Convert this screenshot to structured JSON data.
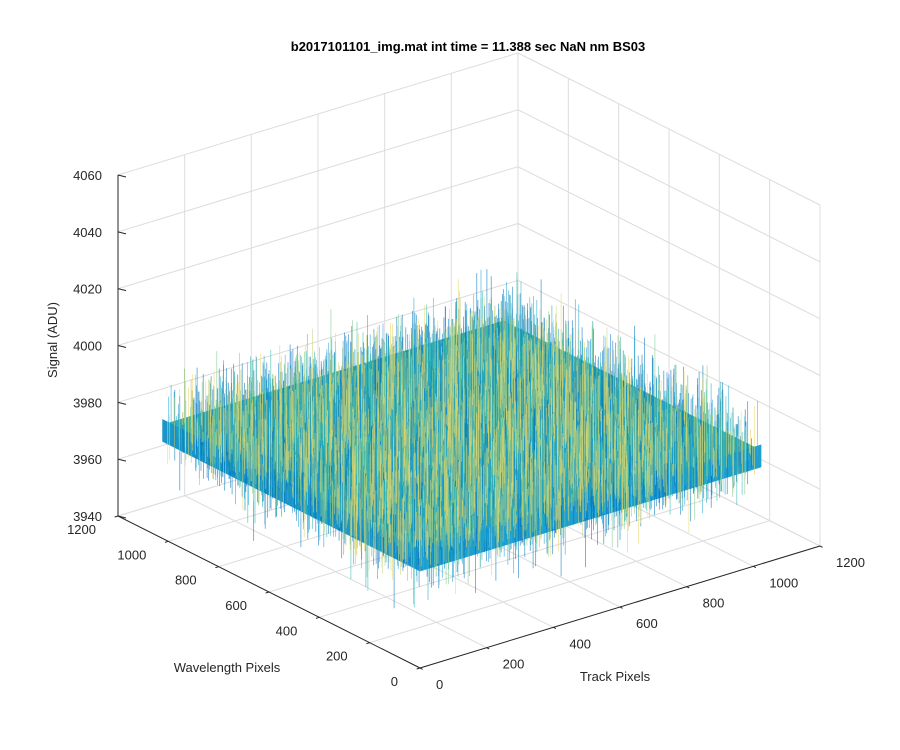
{
  "chart_data": {
    "type": "surface",
    "title": "b2017101101_img.mat int time = 11.388 sec  NaN nm BS03",
    "xlabel": "Track Pixels",
    "ylabel": "Wavelength Pixels",
    "zlabel": "Signal (ADU)",
    "xlim": [
      0,
      1200
    ],
    "ylim": [
      0,
      1200
    ],
    "zlim": [
      3940,
      4060
    ],
    "xticks": [
      "0",
      "200",
      "400",
      "600",
      "800",
      "1000",
      "1200"
    ],
    "yticks": [
      "0",
      "200",
      "400",
      "600",
      "800",
      "1000",
      "1200"
    ],
    "zticks": [
      "3940",
      "3960",
      "3980",
      "4000",
      "4020",
      "4040",
      "4060"
    ],
    "grid": true,
    "surface": {
      "x_range": [
        0,
        1024
      ],
      "y_range": [
        0,
        1024
      ],
      "signal_mean": 3980,
      "signal_min": 3955,
      "signal_max": 4020,
      "colormap": [
        "#0072bd",
        "#1aa3d6",
        "#33b7b0",
        "#7fc98f",
        "#c8d37b",
        "#e8d86a"
      ]
    }
  }
}
